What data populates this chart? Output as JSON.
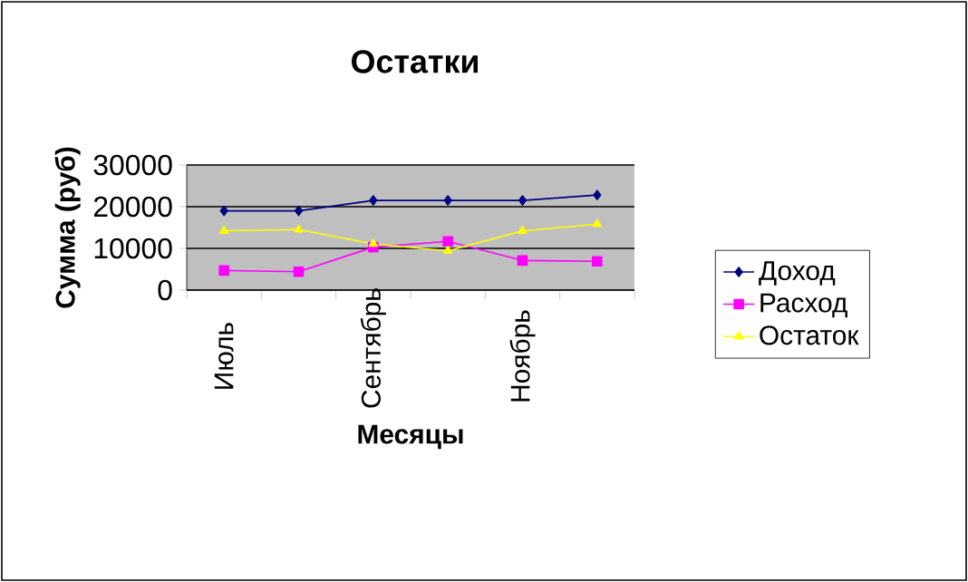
{
  "chart_data": {
    "type": "line",
    "title": "Остатки",
    "xlabel": "Месяцы",
    "ylabel": "Сумма (руб)",
    "categories": [
      "Июль",
      null,
      "Сентябрь",
      null,
      "Ноябрь",
      null
    ],
    "series": [
      {
        "name": "Доход",
        "color": "#000080",
        "marker": "diamond",
        "values": [
          19000,
          19000,
          21500,
          21500,
          21500,
          22800
        ]
      },
      {
        "name": "Расход",
        "color": "#ff00ff",
        "marker": "square",
        "values": [
          4700,
          4400,
          10300,
          11700,
          7100,
          6900
        ]
      },
      {
        "name": "Остаток",
        "color": "#ffff00",
        "marker": "triangle",
        "values": [
          14200,
          14500,
          11100,
          9400,
          14200,
          15800
        ]
      }
    ],
    "ylim": [
      0,
      30000
    ],
    "yticks": [
      0,
      10000,
      20000,
      30000
    ],
    "grid": "y",
    "legend": "right"
  }
}
